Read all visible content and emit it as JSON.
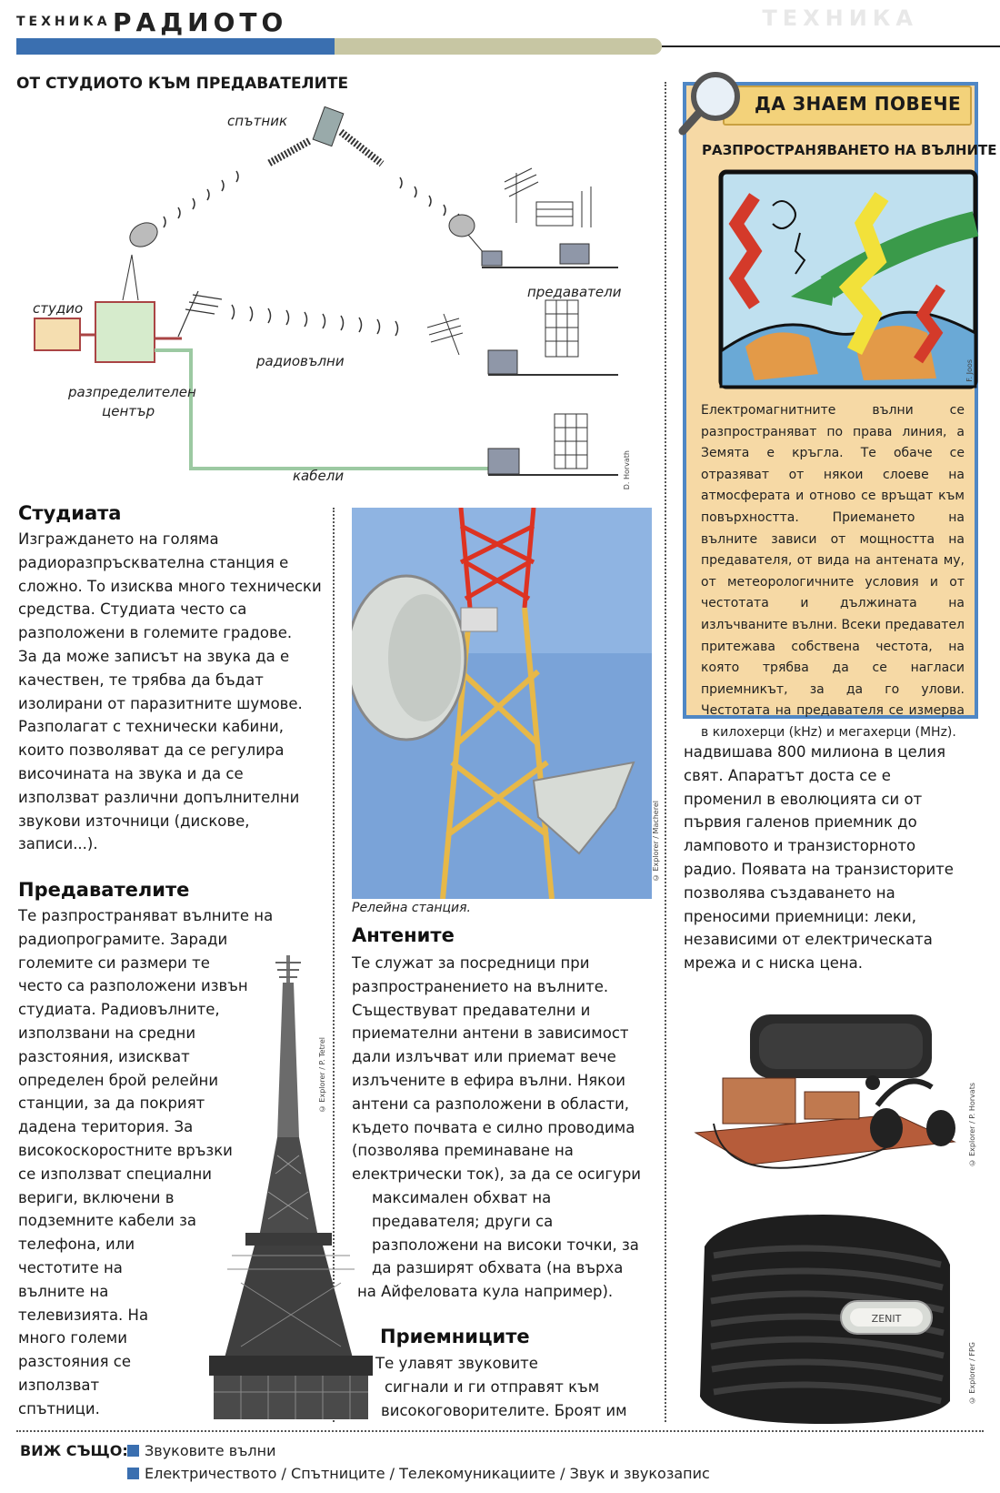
{
  "header": {
    "section": "ТЕХНИКА",
    "title": "РАДИОТО",
    "ghost_title": "ТЕХНИКА"
  },
  "diagram": {
    "title": "ОТ СТУДИОТО КЪМ ПРЕДАВАТЕЛИТЕ",
    "labels": {
      "satellite": "спътник",
      "studio": "студио",
      "distribution_center_1": "разпределителен",
      "distribution_center_2": "център",
      "radio_waves": "радиовълни",
      "transmitters": "предаватели",
      "cables": "кабели"
    },
    "credit": "D. Horvath"
  },
  "col1": {
    "studio_heading": "Студиата",
    "studio_lines": [
      "Изграждането на голяма",
      "радиоразпръсквателна станция е",
      "сложно. То изисква много технически",
      "средства. Студиата често са",
      "разположени в големите градове.",
      "За да може записът на звука да е",
      "качествен, те трябва да бъдат",
      "изолирани от паразитните шумове.",
      "Разполагат с технически кабини,",
      "които позволяват да се регулира",
      "височината на звука и да се",
      "използват различни допълнителни",
      "звукови източници (дискове,",
      "записи...)."
    ],
    "transmitters_heading": "Предавателите",
    "transmitters_lines": [
      "Те разпространяват вълните на",
      "радиопрограмите. Заради",
      "големите си размери те",
      "често са разположени извън",
      "студиата. Радиовълните,",
      "използвани на средни",
      "разстояния, изискват",
      "определен брой релейни",
      "станции, за да покрият",
      "дадена територия. За",
      "високоскоростните връзки",
      "се използват специални",
      "вериги, включени в",
      "подземните кабели за",
      "телефона, или",
      "честотите на",
      "вълните на",
      "телевизията. На",
      "много големи",
      "разстояния се",
      "използват",
      "спътници."
    ],
    "tower_credit": "© Explorer / P. Tetrel"
  },
  "col2": {
    "photo_caption": "Релейна станция.",
    "photo_credit": "© Explorer / Macherel",
    "antennas_heading": "Антените",
    "antennas_lines": [
      "Те служат за посредници при",
      "разпространението на вълните.",
      "Съществуват предавателни и",
      "приемателни антени в зависимост",
      "дали излъчват или приемат вече",
      "излъчените в ефира вълни. Някои",
      "антени са разположени в области,",
      "където почвата е силно проводима",
      "(позволява преминаване на",
      "електрически ток), за да се осигури",
      "максимален обхват на",
      "предавателя; други са",
      "разположени на високи точки, за",
      "да разширят обхвата (на върха",
      "на Айфеловата кула например)."
    ],
    "receivers_heading": "Приемниците",
    "receivers_lines": [
      "Те улавят звуковите",
      "сигнали и ги отправят към",
      "високоговорителите. Броят им"
    ]
  },
  "box": {
    "badge": "ДА ЗНАЕМ ПОВЕЧЕ",
    "subtitle": "РАЗПРОСТРАНЯВАНЕТО НА ВЪЛНИТЕ",
    "illustration_credit": "F. Joos",
    "text": "Електромагнитните вълни се разпространяват по права линия, а Земята е кръгла. Те обаче се отразяват от някои слоеве на атмосферата и отново се връщат към повърхността. Приемането на вълните зависи от мощността на предавателя, от вида на антената му, от метеорологичните условия и от честотата и дължината на излъчваните вълни. Всеки предавател притежава собствена честота, на която трябва да се нагласи приемникът, за да го улови. Честотата на предавателя се измерва в килохерци (kHz) и мегахерци (MHz)."
  },
  "col3": {
    "lines": [
      "надвишава 800 милиона в целия",
      "свят. Апаратът доста се е",
      "променил в еволюцията си от",
      "първия галенов приемник до",
      "ламповото и транзисторното",
      "радио. Появата на транзисторите",
      "позволява създаването на",
      "преносими приемници: леки,",
      "независими от електрическата",
      "мрежа и с ниска цена."
    ],
    "crystal_credit": "© Explorer / P. Horvats",
    "radio_credit": "© Explorer / FPG",
    "radio_brand": "ZENIT"
  },
  "footer": {
    "label": "ВИЖ СЪЩО:",
    "item1": "Звуковите вълни",
    "item2": "Електричеството / Спътниците / Телекомуникациите / Звук и звукозапис"
  },
  "colors": {
    "accent_blue": "#3a6fb0",
    "box_bg": "#f6d9a5",
    "box_border": "#4f87c5"
  }
}
